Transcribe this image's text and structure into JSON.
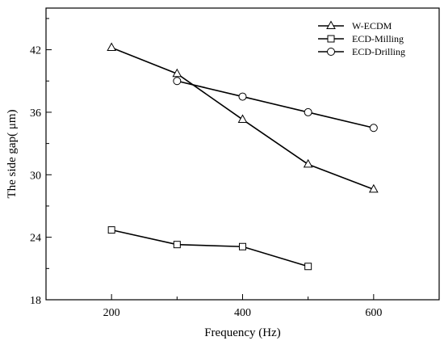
{
  "chart_data": {
    "type": "line",
    "title": "",
    "xlabel": "Frequency (Hz)",
    "ylabel": "The side gap( μm)",
    "xlim": [
      100,
      700
    ],
    "ylim": [
      18,
      46
    ],
    "x_ticks": [
      200,
      400,
      600
    ],
    "x_minor_ticks": [
      300,
      500
    ],
    "y_ticks": [
      18,
      24,
      30,
      36,
      42
    ],
    "y_minor_ticks": [
      21,
      27,
      33,
      39,
      45
    ],
    "x_tick_labels": [
      "200",
      "400",
      "600"
    ],
    "y_tick_labels": [
      "18",
      "24",
      "30",
      "36",
      "42"
    ],
    "grid": false,
    "legend_position": "top-right",
    "series": [
      {
        "name": "W-ECDM",
        "marker": "triangle",
        "x": [
          200,
          300,
          400,
          500,
          600
        ],
        "y": [
          42.2,
          39.7,
          35.3,
          31.0,
          28.6
        ]
      },
      {
        "name": "ECD-Milling",
        "marker": "square",
        "x": [
          200,
          300,
          400,
          500
        ],
        "y": [
          24.7,
          23.3,
          23.1,
          21.2
        ]
      },
      {
        "name": "ECD-Drilling",
        "marker": "circle",
        "x": [
          300,
          400,
          500,
          600
        ],
        "y": [
          39.0,
          37.5,
          36.0,
          34.5
        ]
      }
    ]
  }
}
